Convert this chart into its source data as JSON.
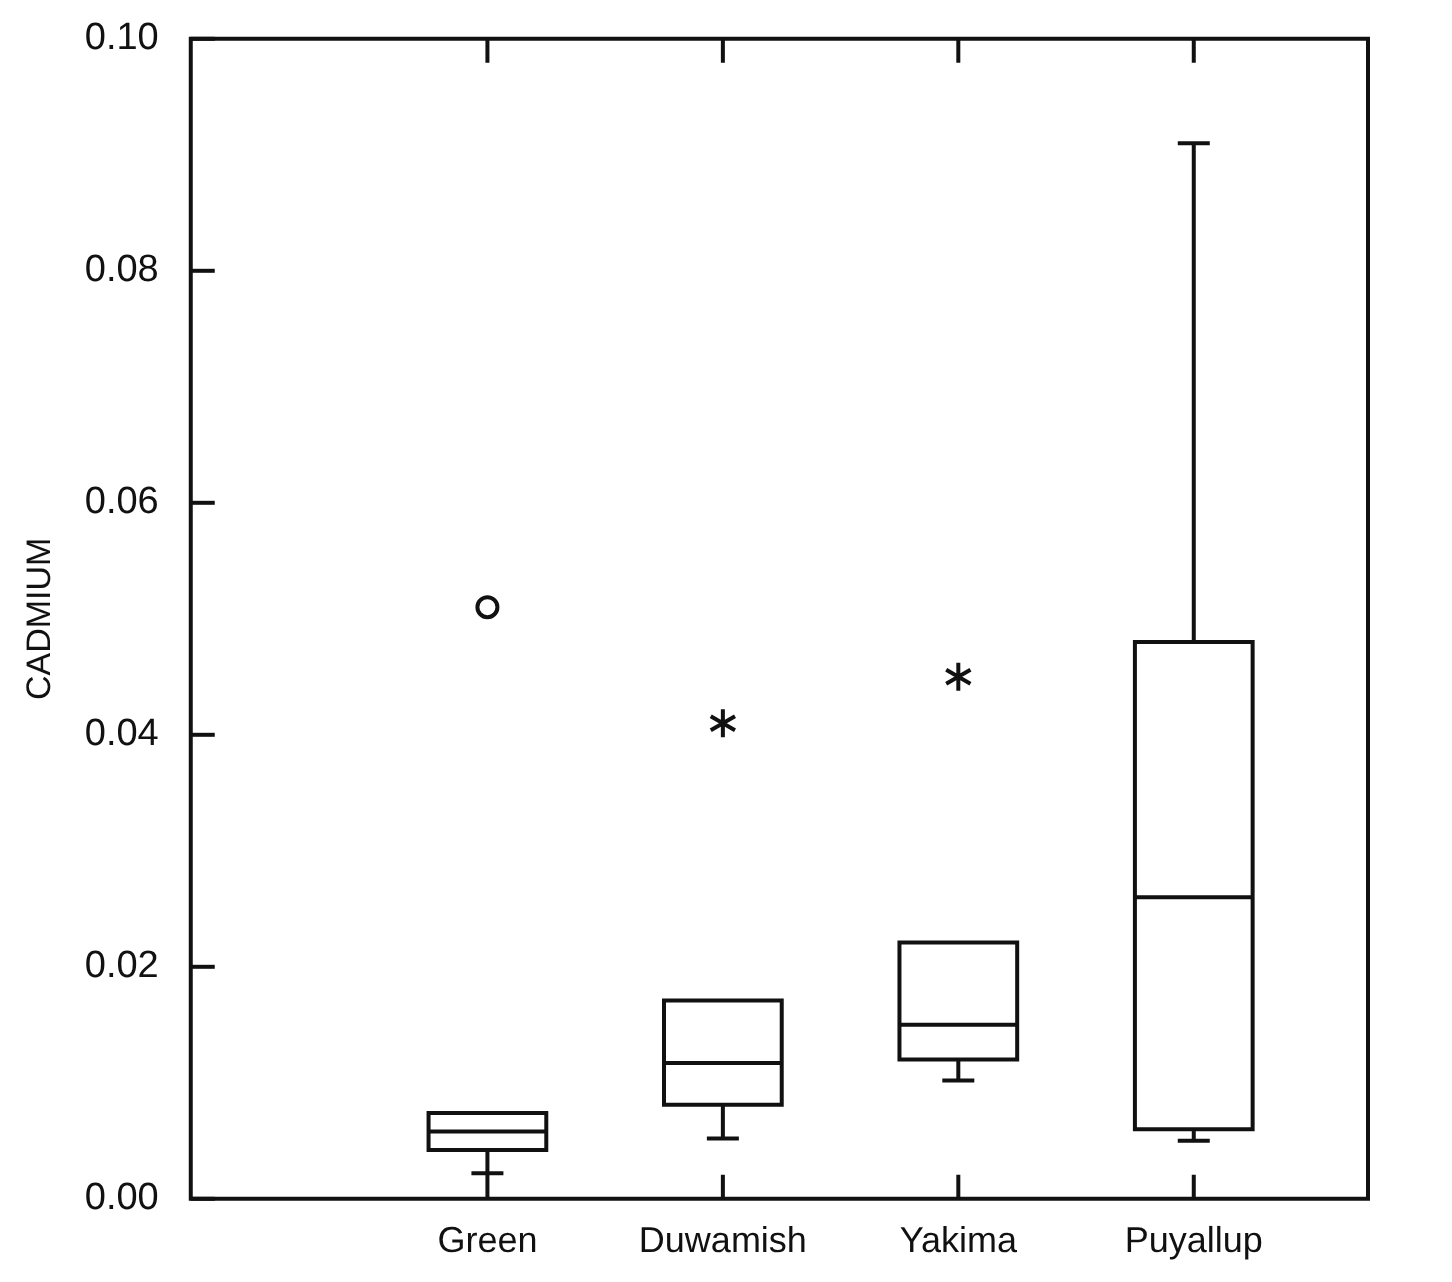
{
  "chart_data": {
    "type": "box",
    "ylabel": "CADMIUM",
    "categories": [
      "Green",
      "Duwamish",
      "Yakima",
      "Puyallup"
    ],
    "ylim": [
      0,
      0.1
    ],
    "yticks": [
      {
        "value": 0,
        "label": "0.00"
      },
      {
        "value": 0.02,
        "label": "0.02"
      },
      {
        "value": 0.04,
        "label": "0.04"
      },
      {
        "value": 0.06,
        "label": "0.06"
      },
      {
        "value": 0.08,
        "label": "0.08"
      },
      {
        "value": 0.1,
        "label": "0.10"
      }
    ],
    "series": [
      {
        "color": "#111111",
        "boxes": [
          {
            "low": 0.0022,
            "q1": 0.0042,
            "median": 0.0058,
            "q3": 0.0074,
            "high": 0.0074
          },
          {
            "low": 0.0052,
            "q1": 0.0081,
            "median": 0.0117,
            "q3": 0.0171,
            "high": 0.0171,
            "outliers": [
              0.041
            ]
          },
          {
            "low": 0.0102,
            "q1": 0.012,
            "median": 0.015,
            "q3": 0.0221,
            "high": 0.0221,
            "outliers": [
              0.045
            ]
          },
          {
            "low": 0.005,
            "q1": 0.006,
            "median": 0.026,
            "q3": 0.048,
            "high": 0.091
          }
        ]
      },
      {
        "type": "scatter",
        "color": "#111111",
        "marker": "circle",
        "x": [
          "Green"
        ],
        "values": [
          0.051
        ]
      }
    ]
  }
}
